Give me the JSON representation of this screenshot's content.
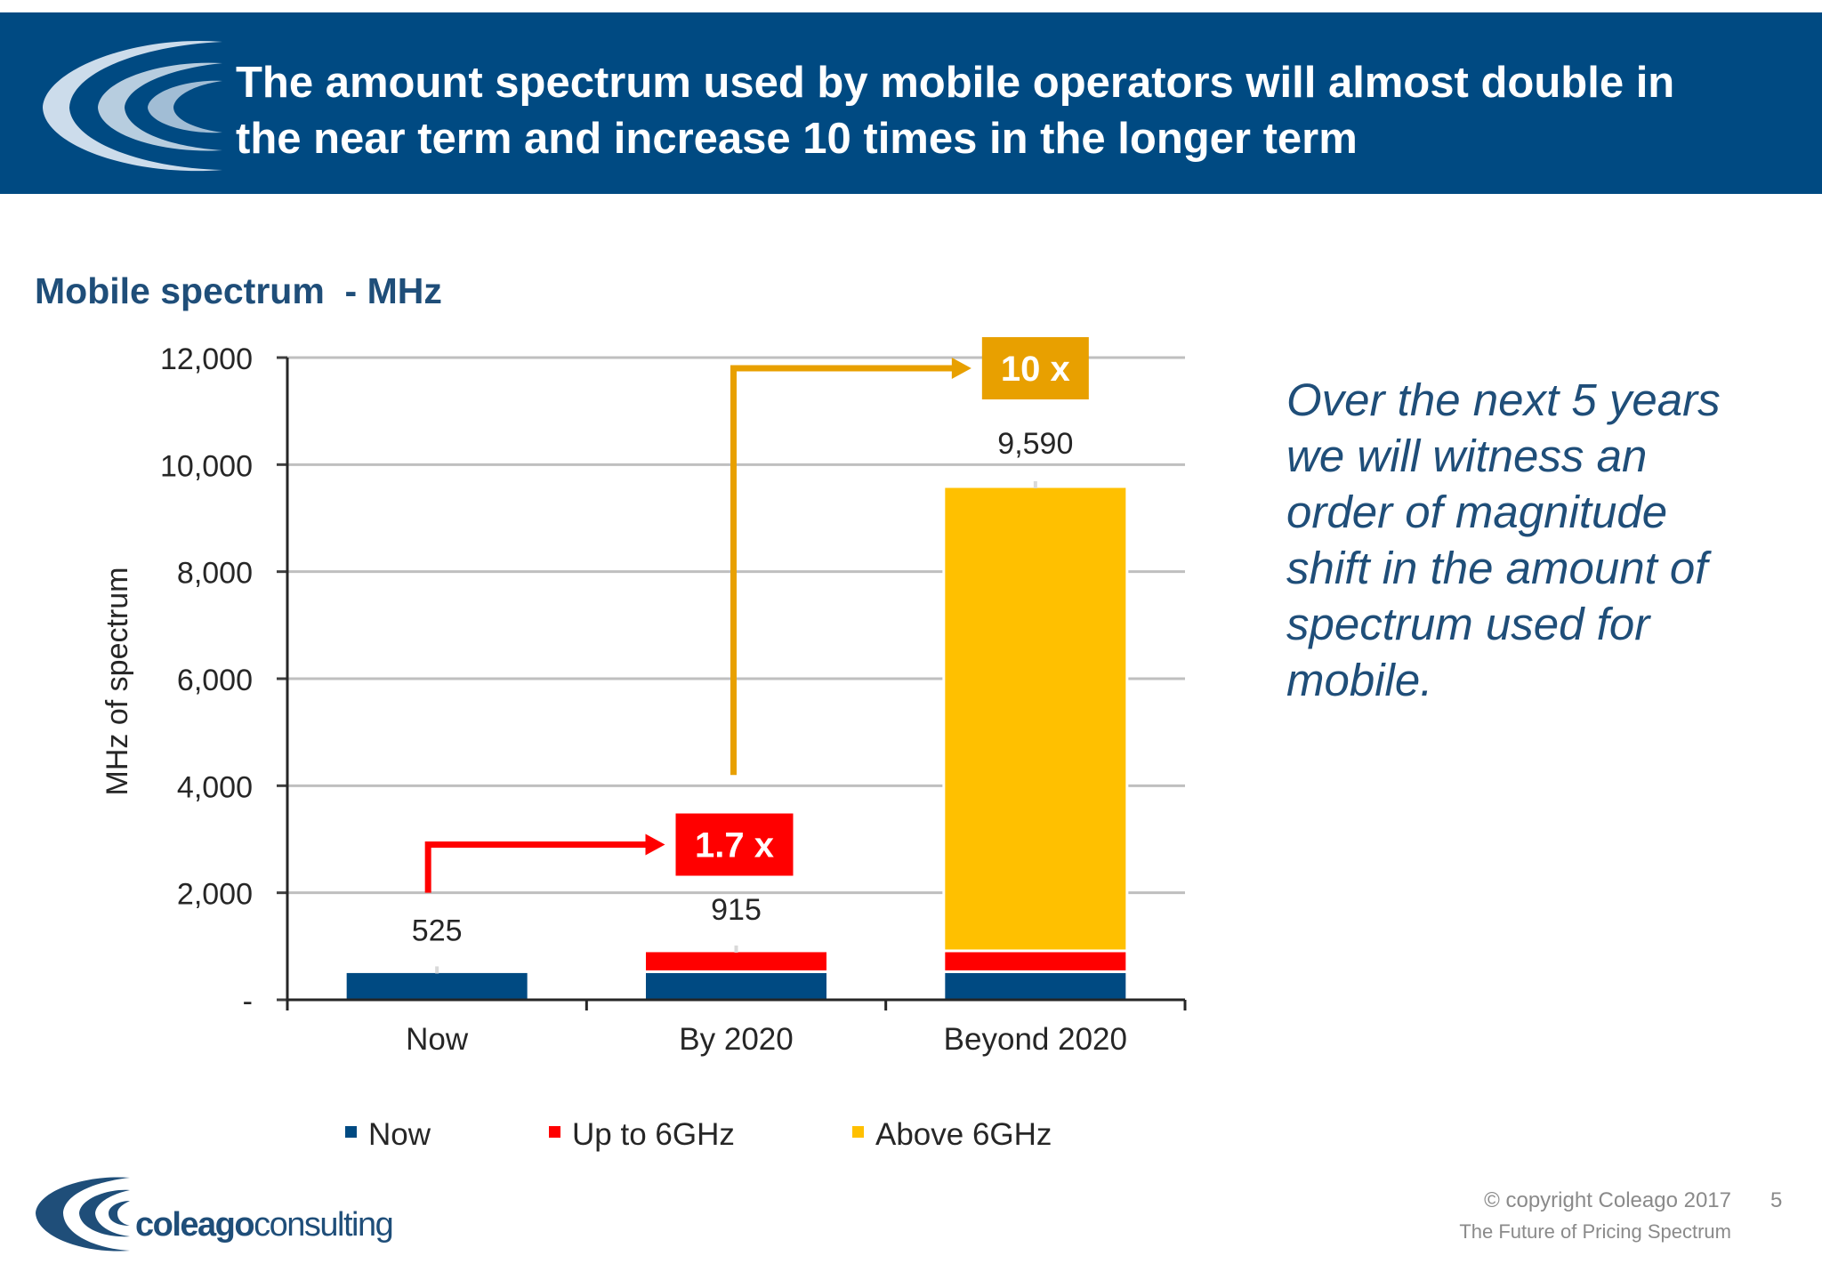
{
  "slide": {
    "title_line1": "The amount spectrum used by mobile operators will almost double in",
    "title_line2": "the near term and increase 10 times in the longer term",
    "banner_color": "#004a82",
    "commentary_lines": [
      "Over the next 5 years",
      "we will witness an",
      "order of magnitude",
      "shift in the amount of",
      "spectrum used for",
      "mobile."
    ],
    "commentary_color": "#1f4e79"
  },
  "chart_data": {
    "type": "bar",
    "stacked": true,
    "title": "Mobile spectrum  - MHz",
    "ylabel": "MHz of spectrum",
    "xlabel": "",
    "ylim": [
      0,
      12000
    ],
    "y_ticks": [
      0,
      2000,
      4000,
      6000,
      8000,
      10000,
      12000
    ],
    "y_tick_labels": [
      "-",
      "2,000",
      "4,000",
      "6,000",
      "8,000",
      "10,000",
      "12,000"
    ],
    "grid": true,
    "categories": [
      "Now",
      "By 2020",
      "Beyond 2020"
    ],
    "series": [
      {
        "name": "Now",
        "color": "#004a82",
        "values": [
          525,
          525,
          525
        ]
      },
      {
        "name": "Up to 6GHz",
        "color": "#ff0000",
        "values": [
          0,
          390,
          390
        ]
      },
      {
        "name": "Above 6GHz",
        "color": "#ffc000",
        "values": [
          0,
          0,
          8675
        ]
      }
    ],
    "totals": [
      525,
      915,
      9590
    ],
    "total_labels": [
      "525",
      "915",
      "9,590"
    ],
    "legend_position": "bottom",
    "annotations": [
      {
        "label": "1.7 x",
        "color": "#ff0000",
        "from_category": "Now",
        "to_category": "By 2020",
        "box_value": 2900,
        "start_value": 2000
      },
      {
        "label": "10 x",
        "color": "#e8a000",
        "from_category": "By 2020",
        "to_category": "Beyond 2020",
        "box_value": 11800,
        "start_value": 4200
      }
    ]
  },
  "footer": {
    "logo_text_bold": "coleago",
    "logo_text_light": "consulting",
    "copyright": "© copyright Coleago 2017",
    "deck_title": "The Future of Pricing Spectrum",
    "page_number": "5"
  }
}
